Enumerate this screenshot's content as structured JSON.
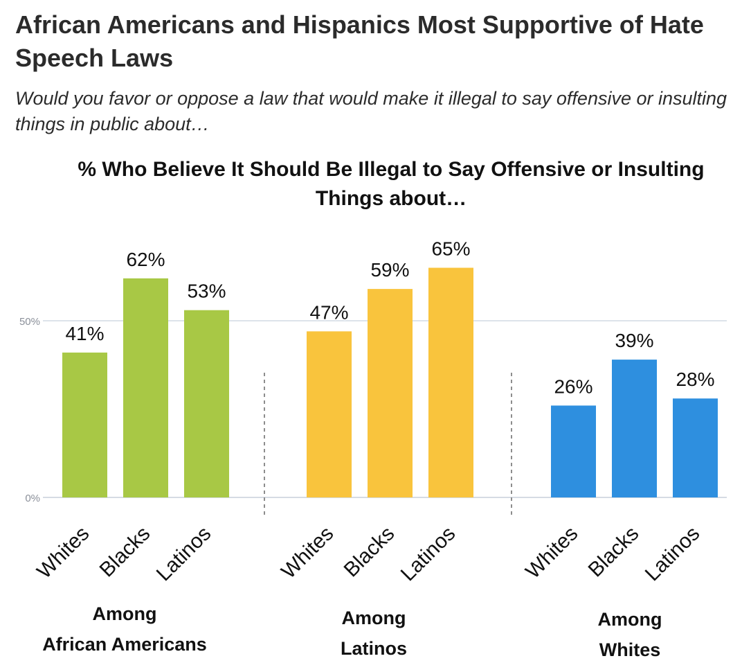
{
  "title": "African Americans and Hispanics Most Supportive of Hate Speech Laws",
  "subtitle": "Would you favor or oppose a law that would make it illegal to say offensive or insulting things in public about…",
  "chart_data": {
    "type": "bar",
    "title": "% Who Believe It Should Be Illegal to Say Offensive or Insulting Things about…",
    "ylim": [
      0,
      100
    ],
    "yticks": [
      0,
      50
    ],
    "ytick_labels": [
      "0%",
      "50%"
    ],
    "grid": true,
    "groups": [
      {
        "label_lines": [
          "Among",
          "African Americans"
        ],
        "color": "#a8c845",
        "categories": [
          "Whites",
          "Blacks",
          "Latinos"
        ],
        "values": [
          41,
          62,
          53
        ],
        "value_labels": [
          "41%",
          "62%",
          "53%"
        ]
      },
      {
        "label_lines": [
          "Among",
          "Latinos"
        ],
        "color": "#f9c43d",
        "categories": [
          "Whites",
          "Blacks",
          "Latinos"
        ],
        "values": [
          47,
          59,
          65
        ],
        "value_labels": [
          "47%",
          "59%",
          "65%"
        ]
      },
      {
        "label_lines": [
          "Among",
          "Whites"
        ],
        "color": "#2e8fdf",
        "categories": [
          "Whites",
          "Blacks",
          "Latinos"
        ],
        "values": [
          26,
          39,
          28
        ],
        "value_labels": [
          "26%",
          "39%",
          "28%"
        ]
      }
    ]
  }
}
